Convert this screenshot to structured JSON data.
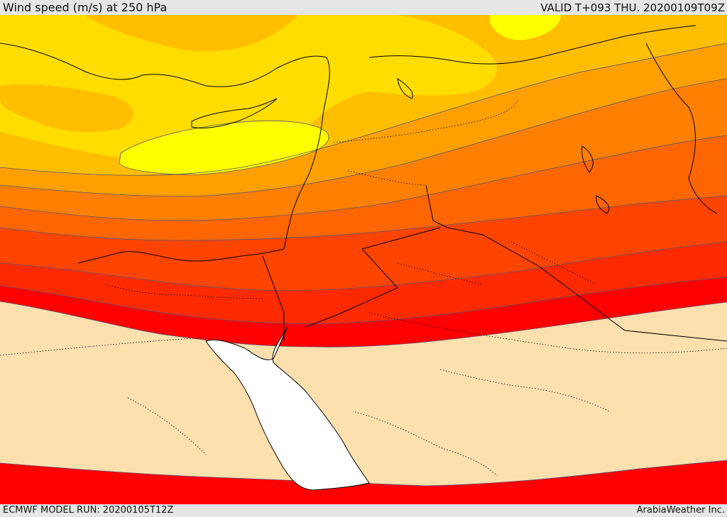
{
  "header": {
    "title": "Wind speed (m/s) at 250 hPa",
    "valid": "VALID T+093 THU. 20200109T09Z"
  },
  "footer": {
    "model_run": "ECMWF MODEL RUN: 20200105T12Z",
    "credit": "ArabiaWeather Inc."
  },
  "map": {
    "field": "wind-speed-250hPa",
    "colors": {
      "calm_land": "#fde0ae",
      "sea": "#ffffff",
      "bands": [
        "#ff0000",
        "#ff2a00",
        "#ff4400",
        "#ff6600",
        "#ff8000",
        "#ffa000",
        "#ffbf00",
        "#ffdd00",
        "#ffff00"
      ],
      "coastline": "#000000",
      "contour": "#555577"
    }
  }
}
